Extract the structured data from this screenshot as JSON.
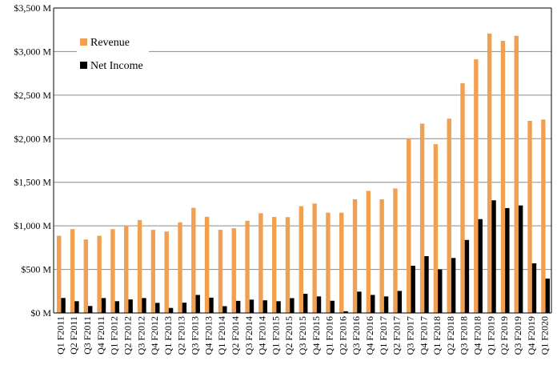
{
  "chart_data": {
    "type": "bar",
    "categories": [
      "Q1 F2011",
      "Q2 F2011",
      "Q3 F2011",
      "Q4 F2011",
      "Q1 F2012",
      "Q2 F2012",
      "Q3 F2012",
      "Q4 F2012",
      "Q1 F2013",
      "Q2 F2013",
      "Q3 F2013",
      "Q4 F2013",
      "Q1 F2014",
      "Q2 F2014",
      "Q3 F2014",
      "Q4 F2014",
      "Q1 F2015",
      "Q2 F2015",
      "Q3 F2015",
      "Q4 F2015",
      "Q1 F2016",
      "Q2 F2016",
      "Q3 F2016",
      "Q4 F2016",
      "Q1 F2017",
      "Q2 F2017",
      "Q3 F2017",
      "Q4 F2017",
      "Q1 F2018",
      "Q2 F2018",
      "Q3 F2018",
      "Q4 F2018",
      "Q1 F2019",
      "Q2 F2019",
      "Q3 F2019",
      "Q4 F2019",
      "Q1 F2020"
    ],
    "series": [
      {
        "name": "Revenue",
        "color": "#f0a050",
        "values": [
          886,
          962,
          844,
          886,
          962,
          1005,
          1066,
          954,
          935,
          1040,
          1207,
          1104,
          955,
          972,
          1058,
          1145,
          1102,
          1100,
          1225,
          1256,
          1151,
          1151,
          1305,
          1401,
          1305,
          1429,
          2004,
          2173,
          1937,
          2230,
          2636,
          2911,
          3207,
          3123,
          3181,
          2205,
          2220
        ]
      },
      {
        "name": "Net Income",
        "color": "#000000",
        "values": [
          172,
          135,
          80,
          171,
          135,
          155,
          171,
          116,
          58,
          118,
          207,
          176,
          78,
          139,
          153,
          145,
          135,
          170,
          220,
          190,
          140,
          20,
          245,
          207,
          190,
          253,
          542,
          652,
          500,
          631,
          838,
          1077,
          1293,
          1204,
          1234,
          570,
          394
        ]
      }
    ],
    "yticks": [
      "$0 M",
      "$500 M",
      "$1,000 M",
      "$1,500 M",
      "$2,000 M",
      "$2,500 M",
      "$3,000 M",
      "$3,500 M"
    ],
    "ylim": [
      0,
      3500
    ],
    "title": "",
    "xlabel": "",
    "ylabel": "",
    "grid": true,
    "legend_position": "top-left"
  }
}
